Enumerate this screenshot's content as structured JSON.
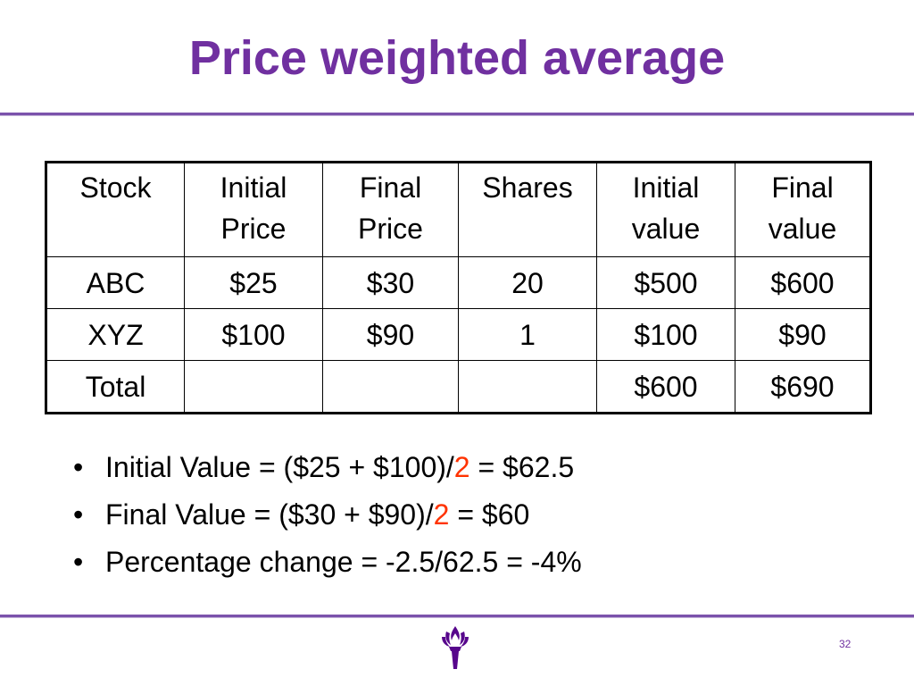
{
  "slide": {
    "title": "Price weighted average",
    "page_number": "32",
    "accent_color": "#7030a0",
    "highlight_color": "#ff3300",
    "logo_icon": "torch-logo-icon"
  },
  "table": {
    "headers": [
      [
        "Stock"
      ],
      [
        "Initial",
        "Price"
      ],
      [
        "Final",
        "Price"
      ],
      [
        "Shares"
      ],
      [
        "Initial",
        "value"
      ],
      [
        "Final",
        "value"
      ]
    ],
    "rows": [
      [
        "ABC",
        "$25",
        "$30",
        "20",
        "$500",
        "$600"
      ],
      [
        "XYZ",
        "$100",
        "$90",
        "1",
        "$100",
        "$90"
      ],
      [
        "Total",
        "",
        "",
        "",
        "$600",
        "$690"
      ]
    ]
  },
  "bullets": [
    {
      "pre": "Initial Value = ($25 + $100)/",
      "highlight": "2",
      "post": " = $62.5"
    },
    {
      "pre": "Final Value = ($30 + $90)/",
      "highlight": "2",
      "post": " = $60"
    },
    {
      "pre": "Percentage change = -2.5/62.5 = -4%",
      "highlight": "",
      "post": ""
    }
  ]
}
